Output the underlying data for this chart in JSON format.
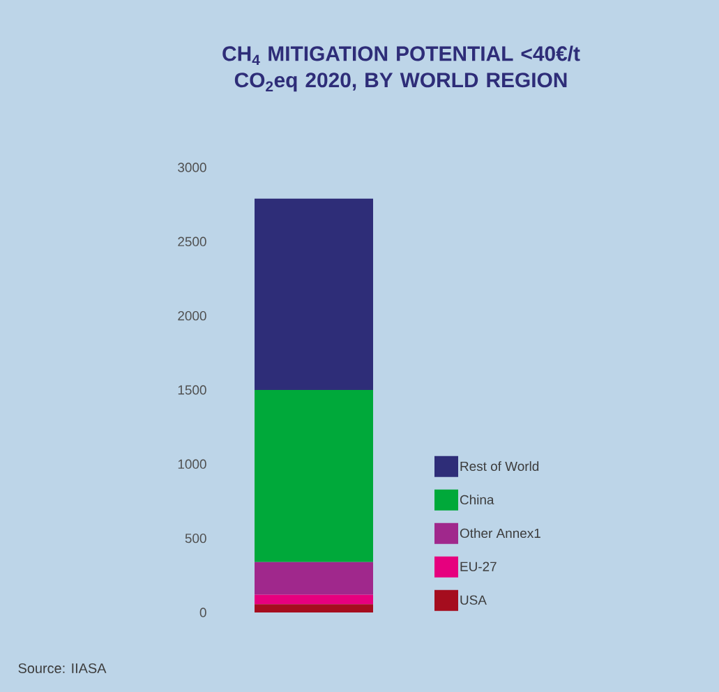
{
  "chart_data": {
    "type": "bar",
    "title": "CH$_{4}$ MITIGATION POTENTIAL <40€/t CO$_{2}$eq 2020, BY WORLD REGION",
    "categories": [
      null
    ],
    "stacked": true,
    "legend": "right",
    "series": [
      {
        "name": "USA",
        "color": "#a50d1e",
        "values": [
          55
        ]
      },
      {
        "name": "EU-27",
        "color": "#e6007e",
        "values": [
          65
        ]
      },
      {
        "name": "Other Annex1",
        "color": "#a0288c",
        "values": [
          220
        ]
      },
      {
        "name": "China",
        "color": "#00a93a",
        "values": [
          1160
        ]
      },
      {
        "name": "Rest of World",
        "color": "#2e2d78",
        "values": [
          1290
        ]
      }
    ],
    "ylim": [
      0,
      3000
    ],
    "yticks": [
      0,
      500,
      1000,
      1500,
      2000,
      2500,
      3000
    ],
    "annotations": [
      "Source: IIASA"
    ]
  }
}
